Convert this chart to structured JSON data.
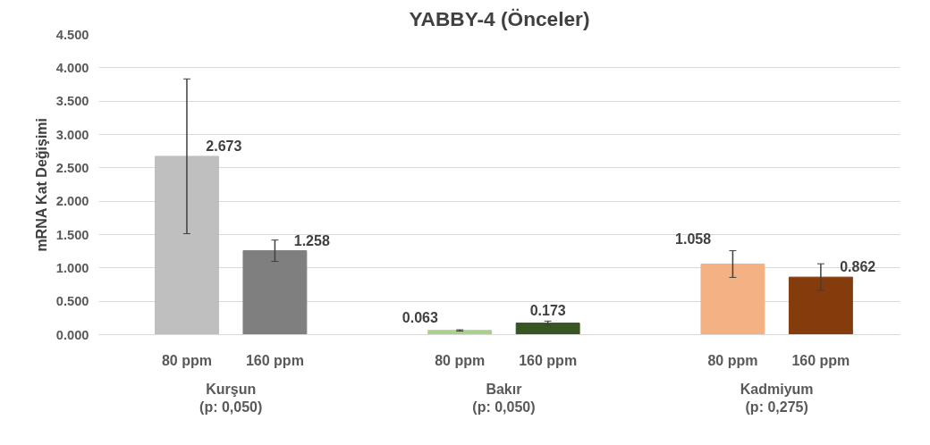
{
  "chart_data": {
    "type": "bar",
    "title": "YABBY-4 (Önceler)",
    "ylabel": "mRNA Kat Değişimi",
    "categories": [
      "80 ppm",
      "160 ppm",
      "80 ppm",
      "160 ppm",
      "80 ppm",
      "160 ppm"
    ],
    "values": [
      2.673,
      1.258,
      0.063,
      0.173,
      1.058,
      0.862
    ],
    "colors": [
      "#bfbfbf",
      "#7f7f7f",
      "#a9d18e",
      "#375623",
      "#f4b183",
      "#843c0c"
    ],
    "errors": [
      1.16,
      0.16,
      0.01,
      0.03,
      0.2,
      0.2
    ],
    "ylim": [
      0,
      4.5
    ],
    "yticks": [
      {
        "value": 0,
        "label": "0.000"
      },
      {
        "value": 0.5,
        "label": "0.500"
      },
      {
        "value": 1,
        "label": "1.000"
      },
      {
        "value": 1.5,
        "label": "1.500"
      },
      {
        "value": 2,
        "label": "2.000"
      },
      {
        "value": 2.5,
        "label": "2.500"
      },
      {
        "value": 3,
        "label": "3.000"
      },
      {
        "value": 3.5,
        "label": "3.500"
      },
      {
        "value": 4,
        "label": "4.000"
      },
      {
        "value": 4.5,
        "label": "4.500"
      }
    ],
    "grid": "y",
    "data_labels": true,
    "annotations": [
      "Kurşun\n(p: 0,050)",
      "Bakır\n(p: 0,050)",
      "Kadmiyum\n(p: 0,275)"
    ]
  }
}
